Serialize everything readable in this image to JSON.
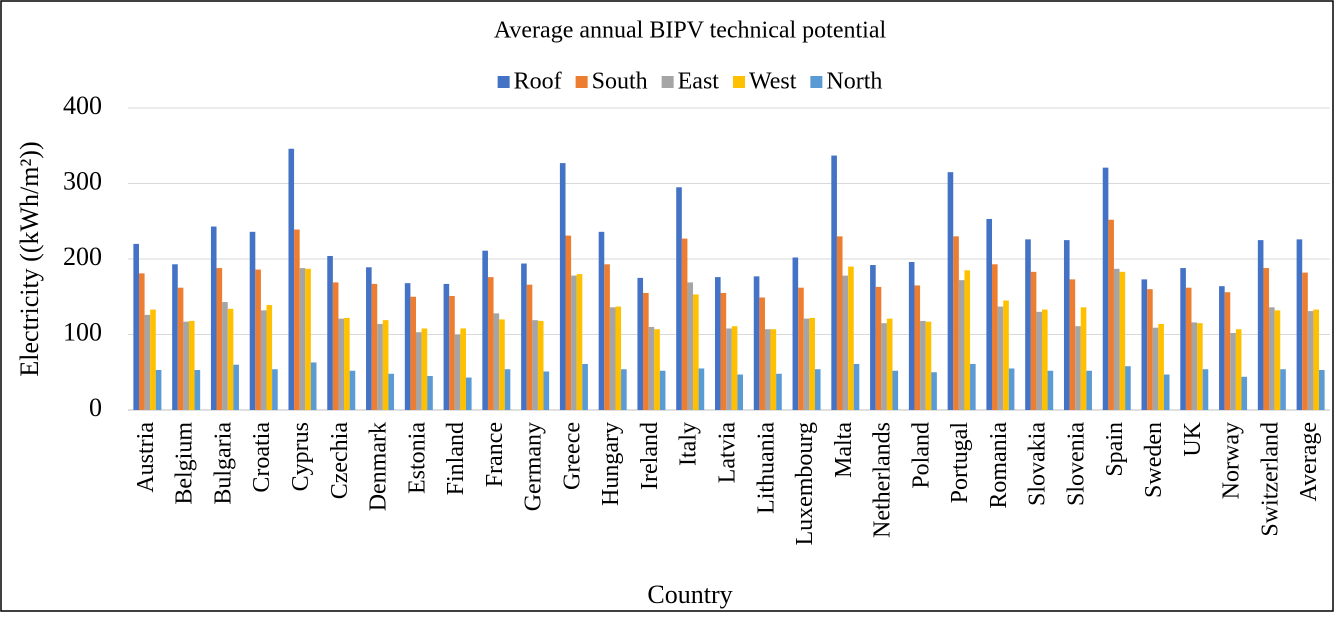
{
  "chart_data": {
    "type": "bar",
    "title": "Average annual BIPV technical potential",
    "x_label": "Country",
    "y_label": "Electricity ((kWh/m²))",
    "categories": [
      "Austria",
      "Belgium",
      "Bulgaria",
      "Croatia",
      "Cyprus",
      "Czechia",
      "Denmark",
      "Estonia",
      "Finland",
      "France",
      "Germany",
      "Greece",
      "Hungary",
      "Ireland",
      "Italy",
      "Latvia",
      "Lithuania",
      "Luxembourg",
      "Malta",
      "Netherlands",
      "Poland",
      "Portugal",
      "Romania",
      "Slovakia",
      "Slovenia",
      "Spain",
      "Sweden",
      "UK",
      "Norway",
      "Switzerland",
      "Average"
    ],
    "series": [
      {
        "name": "Roof",
        "color": "#4472c4",
        "values": [
          220,
          193,
          243,
          236,
          346,
          204,
          189,
          168,
          167,
          211,
          194,
          327,
          236,
          175,
          295,
          176,
          177,
          202,
          337,
          192,
          196,
          315,
          253,
          226,
          225,
          321,
          173,
          188,
          164,
          225,
          226
        ]
      },
      {
        "name": "South",
        "color": "#ed7d31",
        "values": [
          181,
          162,
          188,
          186,
          239,
          169,
          167,
          150,
          151,
          176,
          166,
          231,
          193,
          155,
          227,
          155,
          149,
          162,
          230,
          163,
          165,
          230,
          193,
          183,
          173,
          252,
          160,
          162,
          156,
          188,
          182
        ]
      },
      {
        "name": "East",
        "color": "#a5a5a5",
        "values": [
          126,
          117,
          143,
          132,
          188,
          121,
          114,
          103,
          100,
          128,
          119,
          178,
          136,
          110,
          169,
          108,
          107,
          121,
          178,
          115,
          118,
          172,
          137,
          130,
          111,
          187,
          109,
          116,
          102,
          136,
          131
        ]
      },
      {
        "name": "West",
        "color": "#ffc000",
        "values": [
          133,
          118,
          134,
          139,
          187,
          122,
          119,
          108,
          108,
          120,
          118,
          180,
          137,
          107,
          153,
          111,
          107,
          122,
          190,
          121,
          117,
          185,
          145,
          133,
          136,
          183,
          114,
          115,
          107,
          132,
          133
        ]
      },
      {
        "name": "North",
        "color": "#5b9bd5",
        "values": [
          53,
          53,
          60,
          54,
          63,
          52,
          48,
          45,
          43,
          54,
          51,
          61,
          54,
          52,
          55,
          47,
          48,
          54,
          61,
          52,
          50,
          61,
          55,
          52,
          52,
          58,
          47,
          54,
          44,
          54,
          53
        ]
      }
    ],
    "ylim": [
      0,
      400
    ],
    "yticks": [
      0,
      100,
      200,
      300,
      400
    ],
    "grid": true
  }
}
